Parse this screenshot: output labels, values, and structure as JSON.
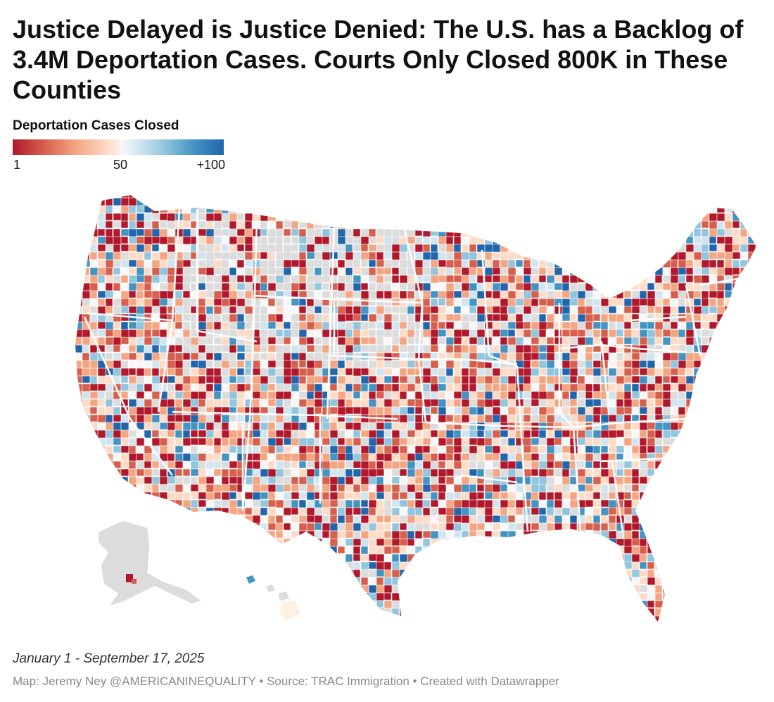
{
  "title": "Justice Delayed is Justice Denied: The U.S. has a Backlog of 3.4M Deportation Cases. Courts Only Closed 800K in These Counties",
  "legend": {
    "title": "Deportation Cases Closed",
    "tick_min": "1",
    "tick_mid": "50",
    "tick_max": "+100",
    "colors": [
      "#b2182b",
      "#d6604d",
      "#f4a582",
      "#fddbc7",
      "#f7f7f7",
      "#d1e5f0",
      "#92c5de",
      "#4393c3",
      "#2166ac"
    ],
    "no_data_color": "#dcdcdc"
  },
  "map": {
    "type": "choropleth",
    "region": "United States counties",
    "borders": "state outlines in white"
  },
  "footer": {
    "date_range": "January 1 - September 17, 2025",
    "source": "Map: Jeremy Ney @AMERICANINEQUALITY • Source: TRAC Immigration • Created with Datawrapper"
  }
}
